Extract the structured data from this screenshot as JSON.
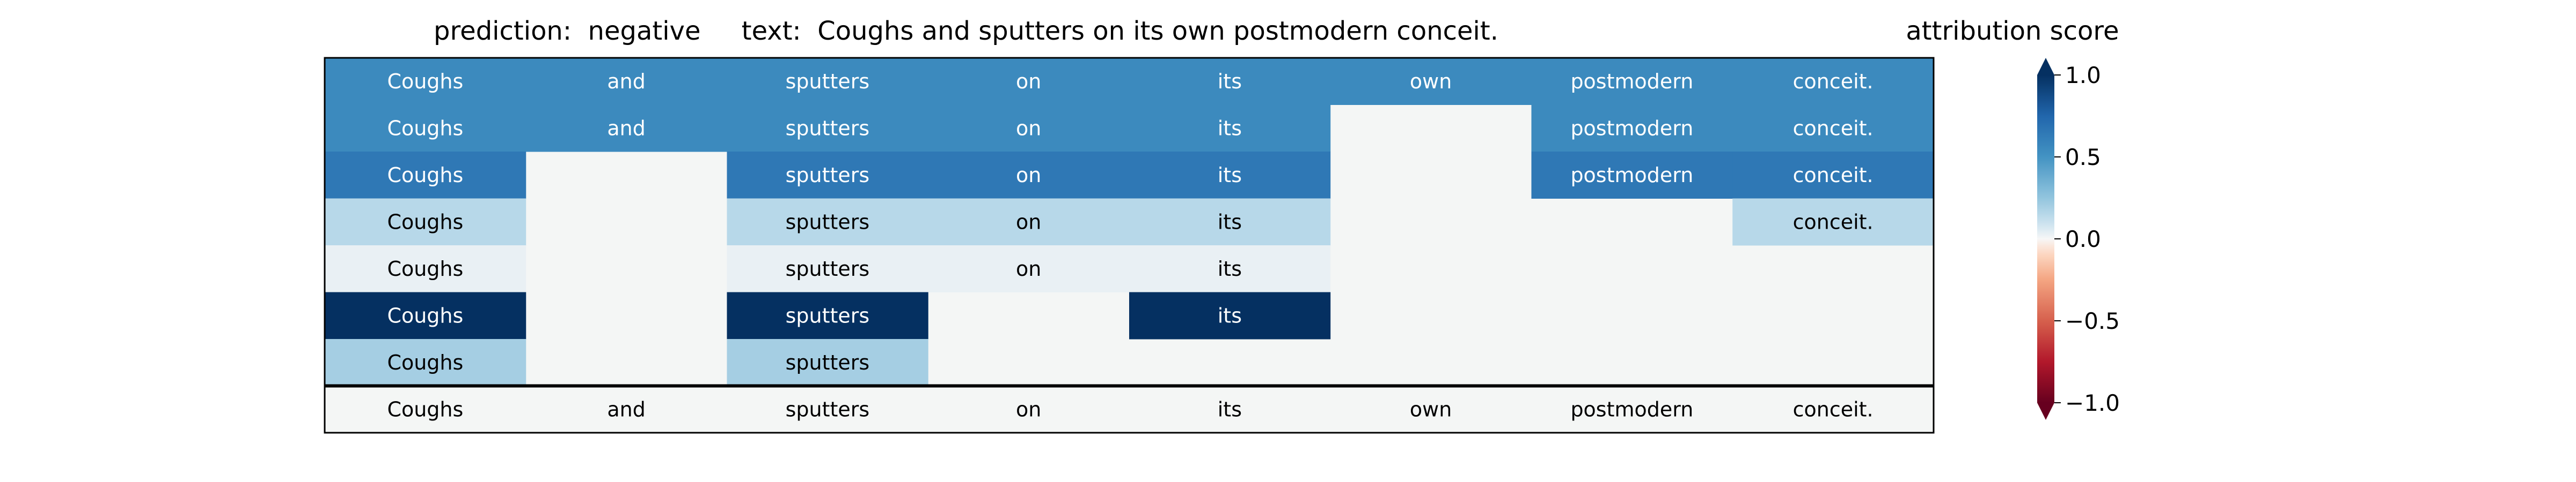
{
  "title": {
    "prediction_label": "prediction:",
    "prediction": "negative",
    "text_label": "text:",
    "text": "Coughs and sputters on its own postmodern conceit."
  },
  "colorbar": {
    "label": "attribution score",
    "ticks": [
      "1.0",
      "0.5",
      "0.0",
      "−0.5",
      "−1.0"
    ],
    "tick_values": [
      1.0,
      0.5,
      0.0,
      -0.5,
      -1.0
    ],
    "range": [
      -1.0,
      1.0
    ],
    "colormap": "RdBu",
    "extend": "both"
  },
  "chart_data": {
    "type": "heatmap",
    "tokens": [
      "Coughs",
      "and",
      "sputters",
      "on",
      "its",
      "own",
      "postmodern",
      "conceit."
    ],
    "value_range": [
      -1.0,
      1.0
    ],
    "rows": [
      [
        0.55,
        0.55,
        0.55,
        0.55,
        0.55,
        0.55,
        0.55,
        0.55
      ],
      [
        0.55,
        0.55,
        0.55,
        0.55,
        0.55,
        null,
        0.55,
        0.55
      ],
      [
        0.65,
        null,
        0.65,
        0.65,
        0.65,
        null,
        0.65,
        0.65
      ],
      [
        0.15,
        null,
        0.15,
        0.15,
        0.15,
        null,
        null,
        0.15
      ],
      [
        0.03,
        null,
        0.03,
        0.03,
        0.03,
        null,
        null,
        null
      ],
      [
        1.0,
        null,
        1.0,
        null,
        1.0,
        null,
        null,
        null
      ],
      [
        0.2,
        null,
        0.2,
        null,
        null,
        null,
        null,
        null
      ]
    ],
    "reference_row": [
      "Coughs",
      "and",
      "sputters",
      "on",
      "its",
      "own",
      "postmodern",
      "conceit."
    ],
    "empty_cell_color": "#f4f6f5",
    "grid": false
  }
}
